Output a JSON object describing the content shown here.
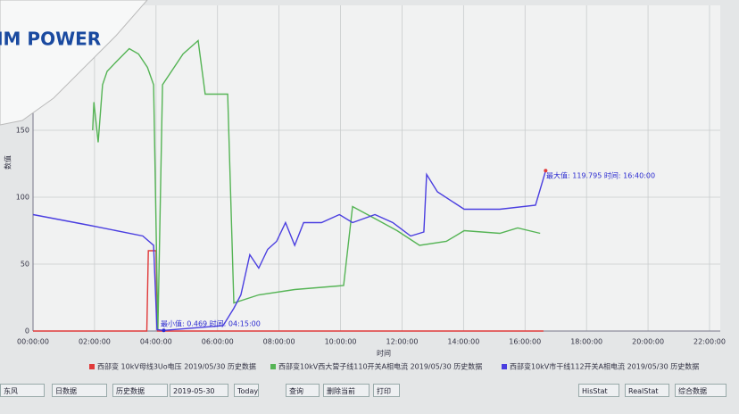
{
  "logo": "HM POWER",
  "chart_data": {
    "type": "line",
    "y_label": "数值",
    "x_label": "时间",
    "x_unit_note": null,
    "xlim": [
      0,
      22
    ],
    "ylim": [
      0,
      240
    ],
    "xticks": [
      {
        "value": 0,
        "label": "00:00:00"
      },
      {
        "value": 2,
        "label": "02:00:00"
      },
      {
        "value": 4,
        "label": "04:00:00"
      },
      {
        "value": 6,
        "label": "06:00:00"
      },
      {
        "value": 8,
        "label": "08:00:00"
      },
      {
        "value": 10,
        "label": "10:00:00"
      },
      {
        "value": 12,
        "label": "12:00:00"
      },
      {
        "value": 14,
        "label": "14:00:00"
      },
      {
        "value": 16,
        "label": "16:00:00"
      },
      {
        "value": 18,
        "label": "18:00:00"
      },
      {
        "value": 20,
        "label": "20:00:00"
      },
      {
        "value": 22,
        "label": "22:00:00"
      }
    ],
    "yticks": [
      0,
      50,
      100,
      150
    ],
    "grid": true,
    "series": [
      {
        "name": "西部变 10kV母线3Uo电压 2019/05/30 历史数据",
        "color": "#e03a3a",
        "x": [
          0,
          3.7,
          3.75,
          4.0,
          4.05,
          16.6
        ],
        "values": [
          0,
          0,
          60,
          60,
          0,
          0
        ]
      },
      {
        "name": "西部变10kV西大营子线110开关A相电流 2019/05/30 历史数据",
        "color": "#55b455",
        "x": [
          1.94,
          1.98,
          2.12,
          2.26,
          2.41,
          2.7,
          3.13,
          3.43,
          3.72,
          3.92,
          4.06,
          4.21,
          4.88,
          5.37,
          5.6,
          6.33,
          6.53,
          7.34,
          8.51,
          10.1,
          10.39,
          11.12,
          11.84,
          12.57,
          13.44,
          14.02,
          15.18,
          15.76,
          16.49
        ],
        "values": [
          150,
          171,
          141,
          184,
          194,
          201,
          211,
          207,
          197,
          184,
          1,
          184,
          207,
          217,
          177,
          177,
          21,
          27,
          31,
          34,
          93,
          84,
          75,
          64,
          67,
          75,
          73,
          77,
          73
        ]
      },
      {
        "name": "西部变10kV市干线112开关A相电流 2019/05/30 历史数据",
        "color": "#4a3ee0",
        "x": [
          0,
          1.83,
          3.57,
          3.92,
          4.03,
          4.25,
          6.18,
          6.53,
          6.76,
          7.05,
          7.34,
          7.63,
          7.92,
          8.21,
          8.51,
          8.8,
          9.38,
          9.96,
          10.39,
          11.12,
          11.7,
          12.28,
          12.71,
          12.8,
          13.15,
          14.02,
          15.18,
          16.34,
          16.67
        ],
        "values": [
          87,
          79,
          71,
          64,
          1,
          0.469,
          4,
          17,
          27,
          57,
          47,
          61,
          67,
          81,
          64,
          81,
          81,
          87,
          81,
          87,
          81,
          71,
          74,
          117,
          104,
          91,
          91,
          94,
          119.795
        ]
      }
    ],
    "annotations": [
      "最大值: 119.795  时间: 16:40:00",
      "最小值: 0.469  时间: 04:15:00"
    ]
  },
  "toolbar": [
    "东风",
    "日数据",
    "历史数据",
    "2019-05-30",
    "Today",
    "查询",
    "删除当前",
    "打印",
    "HisStat",
    "RealStat",
    "综合数据"
  ]
}
